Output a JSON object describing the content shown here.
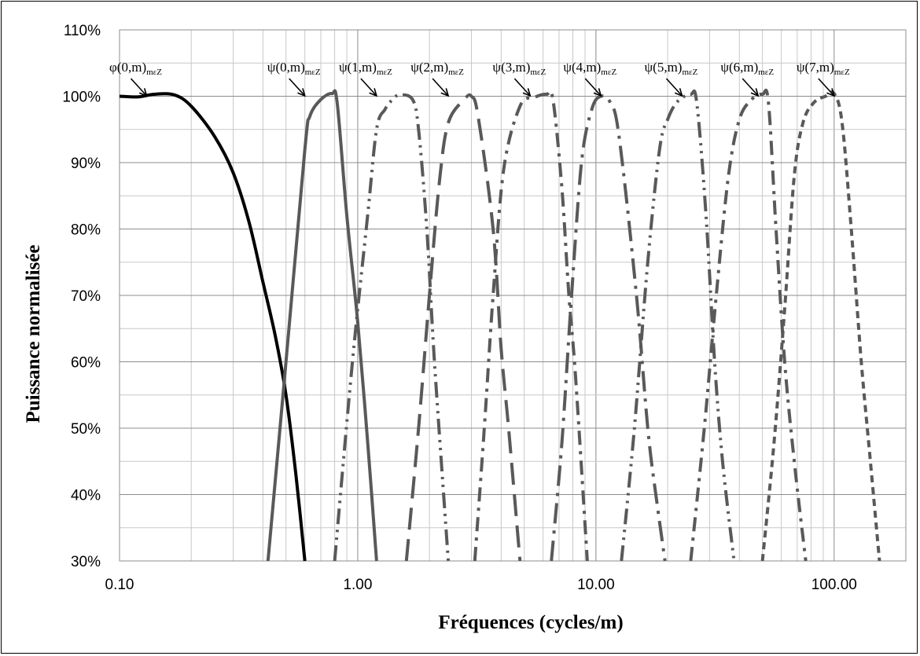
{
  "chart_data": {
    "type": "line",
    "title": "",
    "xlabel": "Fréquences (cycles/m)",
    "ylabel": "Puissance normalisée",
    "x_scale": "log",
    "xlim": [
      0.1,
      200
    ],
    "ylim": [
      30,
      110
    ],
    "x_ticks": [
      "0.10",
      "1.00",
      "10.00",
      "100.00"
    ],
    "x_tick_values": [
      0.1,
      1,
      10,
      100
    ],
    "y_ticks": [
      "30%",
      "40%",
      "50%",
      "60%",
      "70%",
      "80%",
      "90%",
      "100%",
      "110%"
    ],
    "y_tick_values": [
      30,
      40,
      50,
      60,
      70,
      80,
      90,
      100,
      110
    ],
    "grid": true,
    "legend": "none",
    "series": [
      {
        "style": "solid",
        "color": "#000000",
        "points": [
          [
            0.1,
            100
          ],
          [
            0.12,
            99.9
          ],
          [
            0.14,
            100.3
          ],
          [
            0.17,
            100.2
          ],
          [
            0.2,
            98.5
          ],
          [
            0.25,
            94
          ],
          [
            0.3,
            88.5
          ],
          [
            0.35,
            81
          ],
          [
            0.4,
            72
          ],
          [
            0.45,
            64
          ],
          [
            0.5,
            55
          ],
          [
            0.55,
            43
          ],
          [
            0.6,
            30
          ]
        ]
      },
      {
        "style": "solid",
        "color": "#595959",
        "points": [
          [
            0.42,
            30
          ],
          [
            0.5,
            60
          ],
          [
            0.6,
            92
          ],
          [
            0.63,
            97
          ],
          [
            0.7,
            99.5
          ],
          [
            0.78,
            100.4
          ],
          [
            0.82,
            99
          ],
          [
            0.9,
            82
          ],
          [
            1.0,
            66
          ],
          [
            1.1,
            48
          ],
          [
            1.2,
            30
          ]
        ]
      },
      {
        "style": "dashdotdot",
        "color": "#595959",
        "points": [
          [
            0.8,
            30
          ],
          [
            0.95,
            60
          ],
          [
            1.1,
            82
          ],
          [
            1.2,
            95
          ],
          [
            1.3,
            98
          ],
          [
            1.4,
            99.5
          ],
          [
            1.5,
            100.2
          ],
          [
            1.7,
            99.5
          ],
          [
            1.8,
            95
          ],
          [
            1.95,
            80
          ],
          [
            2.1,
            60
          ],
          [
            2.4,
            30
          ]
        ]
      },
      {
        "style": "longdash",
        "color": "#595959",
        "points": [
          [
            1.6,
            30
          ],
          [
            1.8,
            50
          ],
          [
            2.0,
            70
          ],
          [
            2.2,
            87
          ],
          [
            2.4,
            96
          ],
          [
            2.8,
            99.5
          ],
          [
            3.0,
            100
          ],
          [
            3.2,
            97
          ],
          [
            3.7,
            80
          ],
          [
            4.0,
            62
          ],
          [
            4.3,
            50
          ],
          [
            4.8,
            30
          ]
        ]
      },
      {
        "style": "dashdot",
        "color": "#595959",
        "points": [
          [
            3.1,
            30
          ],
          [
            3.4,
            50
          ],
          [
            3.7,
            70
          ],
          [
            4.1,
            89
          ],
          [
            4.8,
            98.5
          ],
          [
            5.5,
            99.8
          ],
          [
            6.2,
            100.3
          ],
          [
            6.6,
            99.5
          ],
          [
            7.2,
            86
          ],
          [
            7.7,
            70
          ],
          [
            8.2,
            58
          ],
          [
            9.2,
            30
          ]
        ]
      },
      {
        "style": "longdashdot",
        "color": "#595959",
        "points": [
          [
            6.5,
            30
          ],
          [
            7.2,
            48
          ],
          [
            7.9,
            70
          ],
          [
            8.7,
            90
          ],
          [
            9.6,
            98
          ],
          [
            10.5,
            100
          ],
          [
            11.5,
            99
          ],
          [
            12.5,
            94
          ],
          [
            14.8,
            70
          ],
          [
            16.5,
            50
          ],
          [
            18,
            39
          ],
          [
            19.5,
            30
          ]
        ]
      },
      {
        "style": "dashdotdot",
        "color": "#595959",
        "points": [
          [
            12.8,
            30
          ],
          [
            14.5,
            50
          ],
          [
            16.5,
            75
          ],
          [
            18.5,
            92
          ],
          [
            20,
            96.5
          ],
          [
            22,
            99.2
          ],
          [
            25,
            100.3
          ],
          [
            26.5,
            99
          ],
          [
            29,
            82
          ],
          [
            31.5,
            60
          ],
          [
            34,
            45
          ],
          [
            38,
            30
          ]
        ]
      },
      {
        "style": "dashdot",
        "color": "#595959",
        "points": [
          [
            25,
            30
          ],
          [
            28.5,
            50
          ],
          [
            32,
            70
          ],
          [
            36,
            88
          ],
          [
            40,
            96.5
          ],
          [
            45,
            99.5
          ],
          [
            50,
            100.3
          ],
          [
            53,
            99
          ],
          [
            57,
            80
          ],
          [
            62,
            60
          ],
          [
            68,
            45
          ],
          [
            76,
            30
          ]
        ]
      },
      {
        "style": "shortdash",
        "color": "#595959",
        "points": [
          [
            50,
            30
          ],
          [
            56,
            48
          ],
          [
            62,
            68
          ],
          [
            68,
            88
          ],
          [
            74,
            96
          ],
          [
            82,
            99
          ],
          [
            92,
            100
          ],
          [
            100,
            100.4
          ],
          [
            108,
            96
          ],
          [
            118,
            80
          ],
          [
            130,
            60
          ],
          [
            142,
            45
          ],
          [
            155,
            30
          ]
        ]
      }
    ],
    "annotations": [
      {
        "symbol": "φ",
        "text": "(0,m)",
        "sub": "mεZ",
        "x": 0.13
      },
      {
        "symbol": "ψ",
        "text": "(0,m)",
        "sub": "mεZ",
        "x": 0.6
      },
      {
        "symbol": "ψ",
        "text": "(1,m)",
        "sub": "mεZ",
        "x": 1.2
      },
      {
        "symbol": "ψ",
        "text": "(2,m)",
        "sub": "mεZ",
        "x": 2.4
      },
      {
        "symbol": "ψ",
        "text": "(3,m)",
        "sub": "mεZ",
        "x": 5.3
      },
      {
        "symbol": "ψ",
        "text": "(4,m)",
        "sub": "mεZ",
        "x": 10.5
      },
      {
        "symbol": "ψ",
        "text": "(5,m)",
        "sub": "mεZ",
        "x": 23
      },
      {
        "symbol": "ψ",
        "text": "(6,m)",
        "sub": "mεZ",
        "x": 48
      },
      {
        "symbol": "ψ",
        "text": "(7,m)",
        "sub": "mεZ",
        "x": 100
      }
    ]
  }
}
